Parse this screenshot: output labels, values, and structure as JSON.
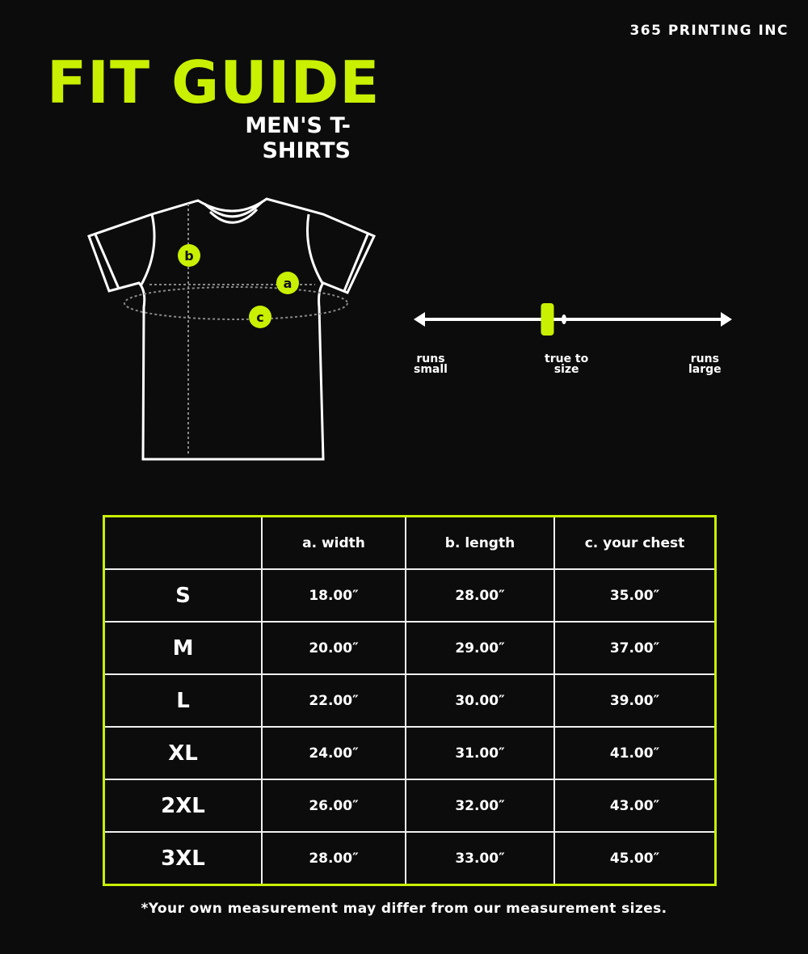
{
  "brand": "365 PRINTING INC",
  "title": "FIT GUIDE",
  "subtitle": "MEN'S T-SHIRTS",
  "accent_color": "#c8f000",
  "diagram": {
    "markers": [
      "b",
      "a",
      "c"
    ]
  },
  "fit_scale": {
    "labels": {
      "left": [
        "runs",
        "small"
      ],
      "middle": [
        "true to",
        "size"
      ],
      "right": [
        "runs",
        "large"
      ]
    },
    "indicator_fraction": 0.42
  },
  "table": {
    "headers": [
      "",
      "a. width",
      "b. length",
      "c. your chest"
    ],
    "rows": [
      [
        "S",
        "18.00″",
        "28.00″",
        "35.00″"
      ],
      [
        "M",
        "20.00″",
        "29.00″",
        "37.00″"
      ],
      [
        "L",
        "22.00″",
        "30.00″",
        "39.00″"
      ],
      [
        "XL",
        "24.00″",
        "31.00″",
        "41.00″"
      ],
      [
        "2XL",
        "26.00″",
        "32.00″",
        "43.00″"
      ],
      [
        "3XL",
        "28.00″",
        "33.00″",
        "45.00″"
      ]
    ]
  },
  "footnote": "*Your own measurement may differ from our measurement sizes."
}
